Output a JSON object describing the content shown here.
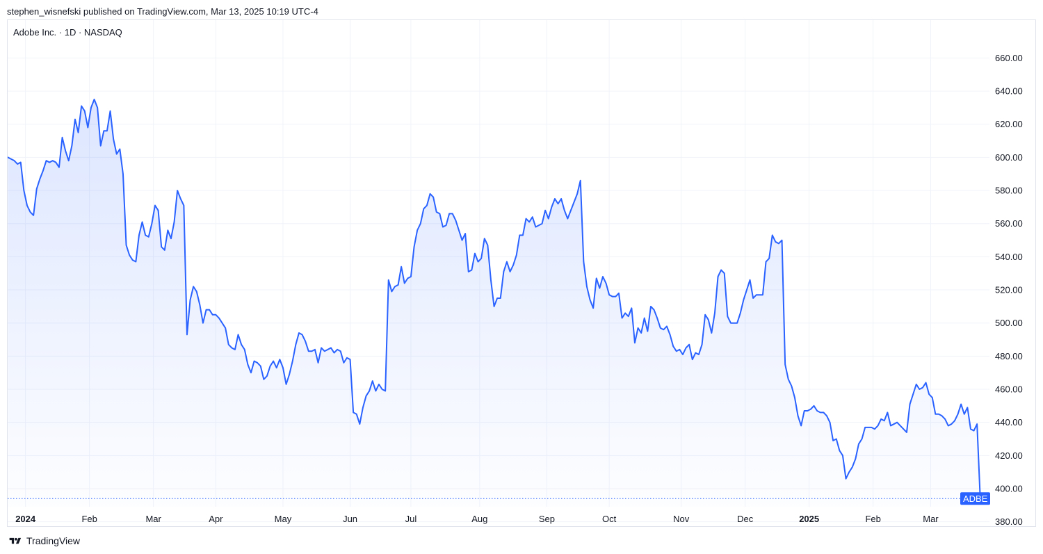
{
  "header": {
    "text": "stephen_wisnefski published on TradingView.com, Mar 13, 2025 10:19 UTC-4"
  },
  "legend": {
    "text": "Adobe Inc. · 1D · NASDAQ"
  },
  "footer": {
    "brand": "TradingView"
  },
  "colors": {
    "line": "#2962ff",
    "grid": "#f0f3fa",
    "axis_text": "#131722",
    "badge_bg": "#2962ff",
    "badge_text": "#ffffff"
  },
  "chart_data": {
    "type": "area",
    "title": "Adobe Inc. · 1D · NASDAQ",
    "symbol": "ADBE",
    "xlabel": "",
    "ylabel": "",
    "ylim": [
      370,
      666
    ],
    "xlim": [
      0,
      303
    ],
    "grid": true,
    "y_ticks": [
      "380.00",
      "400.00",
      "420.00",
      "440.00",
      "460.00",
      "480.00",
      "500.00",
      "520.00",
      "540.00",
      "560.00",
      "580.00",
      "600.00",
      "620.00",
      "640.00",
      "660.00"
    ],
    "x_ticks": [
      {
        "label": "2024",
        "x": 5.5,
        "bold": true
      },
      {
        "label": "Feb",
        "x": 25.5,
        "bold": false
      },
      {
        "label": "Mar",
        "x": 45.5,
        "bold": false
      },
      {
        "label": "Apr",
        "x": 65,
        "bold": false
      },
      {
        "label": "May",
        "x": 86,
        "bold": false
      },
      {
        "label": "Jun",
        "x": 107,
        "bold": false
      },
      {
        "label": "Jul",
        "x": 126,
        "bold": false
      },
      {
        "label": "Aug",
        "x": 147.5,
        "bold": false
      },
      {
        "label": "Sep",
        "x": 168.5,
        "bold": false
      },
      {
        "label": "Oct",
        "x": 188,
        "bold": false
      },
      {
        "label": "Nov",
        "x": 210.5,
        "bold": false
      },
      {
        "label": "Dec",
        "x": 230.5,
        "bold": false
      },
      {
        "label": "2025",
        "x": 250.5,
        "bold": true
      },
      {
        "label": "Feb",
        "x": 270.5,
        "bold": false
      },
      {
        "label": "Mar",
        "x": 288.5,
        "bold": false
      }
    ],
    "series": [
      {
        "name": "ADBE",
        "last_value": 394,
        "points": [
          [
            0,
            600
          ],
          [
            1,
            599
          ],
          [
            2,
            598
          ],
          [
            3,
            596
          ],
          [
            4,
            597
          ],
          [
            5,
            580
          ],
          [
            6,
            571
          ],
          [
            7,
            567
          ],
          [
            8,
            565
          ],
          [
            9,
            581
          ],
          [
            10,
            587
          ],
          [
            11,
            592
          ],
          [
            12,
            598
          ],
          [
            13,
            597
          ],
          [
            14,
            598
          ],
          [
            15,
            597
          ],
          [
            16,
            594
          ],
          [
            17,
            612
          ],
          [
            18,
            604
          ],
          [
            19,
            598
          ],
          [
            20,
            607
          ],
          [
            21,
            623
          ],
          [
            22,
            615
          ],
          [
            23,
            631
          ],
          [
            24,
            628
          ],
          [
            25,
            618
          ],
          [
            26,
            630
          ],
          [
            27,
            635
          ],
          [
            28,
            630
          ],
          [
            29,
            607
          ],
          [
            30,
            616
          ],
          [
            31,
            616
          ],
          [
            32,
            628
          ],
          [
            33,
            611
          ],
          [
            34,
            602
          ],
          [
            35,
            605
          ],
          [
            36,
            590
          ],
          [
            37,
            547
          ],
          [
            38,
            541
          ],
          [
            39,
            538
          ],
          [
            40,
            537
          ],
          [
            41,
            553
          ],
          [
            42,
            561
          ],
          [
            43,
            553
          ],
          [
            44,
            552
          ],
          [
            45,
            560
          ],
          [
            46,
            571
          ],
          [
            47,
            568
          ],
          [
            48,
            546
          ],
          [
            49,
            544
          ],
          [
            50,
            556
          ],
          [
            51,
            551
          ],
          [
            52,
            561
          ],
          [
            53,
            580
          ],
          [
            54,
            575
          ],
          [
            55,
            571
          ],
          [
            56,
            493
          ],
          [
            57,
            514
          ],
          [
            58,
            522
          ],
          [
            59,
            519
          ],
          [
            60,
            511
          ],
          [
            61,
            500
          ],
          [
            62,
            508
          ],
          [
            63,
            508
          ],
          [
            64,
            505
          ],
          [
            65,
            505
          ],
          [
            66,
            503
          ],
          [
            67,
            500
          ],
          [
            68,
            497
          ],
          [
            69,
            487
          ],
          [
            70,
            485
          ],
          [
            71,
            484
          ],
          [
            72,
            493
          ],
          [
            73,
            487
          ],
          [
            74,
            484
          ],
          [
            75,
            475
          ],
          [
            76,
            470
          ],
          [
            77,
            477
          ],
          [
            78,
            476
          ],
          [
            79,
            474
          ],
          [
            80,
            466
          ],
          [
            81,
            468
          ],
          [
            82,
            474
          ],
          [
            83,
            477
          ],
          [
            84,
            473
          ],
          [
            85,
            478
          ],
          [
            86,
            473
          ],
          [
            87,
            463
          ],
          [
            88,
            469
          ],
          [
            89,
            477
          ],
          [
            90,
            487
          ],
          [
            91,
            494
          ],
          [
            92,
            493
          ],
          [
            93,
            489
          ],
          [
            94,
            483
          ],
          [
            95,
            483
          ],
          [
            96,
            484
          ],
          [
            97,
            476
          ],
          [
            98,
            485
          ],
          [
            99,
            483
          ],
          [
            100,
            484
          ],
          [
            101,
            485
          ],
          [
            102,
            482
          ],
          [
            103,
            484
          ],
          [
            104,
            483
          ],
          [
            105,
            476
          ],
          [
            106,
            479
          ],
          [
            107,
            478
          ],
          [
            108,
            446
          ],
          [
            109,
            445
          ],
          [
            110,
            439
          ],
          [
            111,
            449
          ],
          [
            112,
            456
          ],
          [
            113,
            459
          ],
          [
            114,
            465
          ],
          [
            115,
            459
          ],
          [
            116,
            463
          ],
          [
            117,
            460
          ],
          [
            118,
            459
          ],
          [
            119,
            526
          ],
          [
            120,
            519
          ],
          [
            121,
            522
          ],
          [
            122,
            523
          ],
          [
            123,
            534
          ],
          [
            124,
            524
          ],
          [
            125,
            527
          ],
          [
            126,
            528
          ],
          [
            127,
            546
          ],
          [
            128,
            556
          ],
          [
            129,
            560
          ],
          [
            130,
            569
          ],
          [
            131,
            571
          ],
          [
            132,
            578
          ],
          [
            133,
            576
          ],
          [
            134,
            567
          ],
          [
            135,
            566
          ],
          [
            136,
            558
          ],
          [
            137,
            559
          ],
          [
            138,
            566
          ],
          [
            139,
            566
          ],
          [
            140,
            562
          ],
          [
            141,
            556
          ],
          [
            142,
            550
          ],
          [
            143,
            554
          ],
          [
            144,
            531
          ],
          [
            145,
            532
          ],
          [
            146,
            542
          ],
          [
            147,
            537
          ],
          [
            148,
            539
          ],
          [
            149,
            551
          ],
          [
            150,
            547
          ],
          [
            151,
            526
          ],
          [
            152,
            510
          ],
          [
            153,
            515
          ],
          [
            154,
            515
          ],
          [
            155,
            531
          ],
          [
            156,
            537
          ],
          [
            157,
            531
          ],
          [
            158,
            535
          ],
          [
            159,
            541
          ],
          [
            160,
            553
          ],
          [
            161,
            553
          ],
          [
            162,
            563
          ],
          [
            163,
            561
          ],
          [
            164,
            564
          ],
          [
            165,
            558
          ],
          [
            166,
            559
          ],
          [
            167,
            560
          ],
          [
            168,
            568
          ],
          [
            169,
            563
          ],
          [
            170,
            570
          ],
          [
            171,
            575
          ],
          [
            172,
            572
          ],
          [
            173,
            575
          ],
          [
            174,
            568
          ],
          [
            175,
            563
          ],
          [
            176,
            568
          ],
          [
            177,
            573
          ],
          [
            178,
            578
          ],
          [
            179,
            586
          ],
          [
            180,
            537
          ],
          [
            181,
            522
          ],
          [
            182,
            514
          ],
          [
            183,
            509
          ],
          [
            184,
            527
          ],
          [
            185,
            521
          ],
          [
            186,
            528
          ],
          [
            187,
            524
          ],
          [
            188,
            517
          ],
          [
            189,
            516
          ],
          [
            190,
            516
          ],
          [
            191,
            518
          ],
          [
            192,
            503
          ],
          [
            193,
            506
          ],
          [
            194,
            504
          ],
          [
            195,
            509
          ],
          [
            196,
            488
          ],
          [
            197,
            497
          ],
          [
            198,
            494
          ],
          [
            199,
            503
          ],
          [
            200,
            495
          ],
          [
            201,
            510
          ],
          [
            202,
            508
          ],
          [
            203,
            503
          ],
          [
            204,
            497
          ],
          [
            205,
            496
          ],
          [
            206,
            498
          ],
          [
            207,
            493
          ],
          [
            208,
            486
          ],
          [
            209,
            483
          ],
          [
            210,
            484
          ],
          [
            211,
            481
          ],
          [
            212,
            485
          ],
          [
            213,
            487
          ],
          [
            214,
            478
          ],
          [
            215,
            482
          ],
          [
            216,
            481
          ],
          [
            217,
            487
          ],
          [
            218,
            505
          ],
          [
            219,
            502
          ],
          [
            220,
            494
          ],
          [
            221,
            506
          ],
          [
            222,
            528
          ],
          [
            223,
            532
          ],
          [
            224,
            530
          ],
          [
            225,
            504
          ],
          [
            226,
            500
          ],
          [
            227,
            500
          ],
          [
            228,
            500
          ],
          [
            229,
            506
          ],
          [
            230,
            514
          ],
          [
            231,
            520
          ],
          [
            232,
            526
          ],
          [
            233,
            515
          ],
          [
            234,
            517
          ],
          [
            235,
            517
          ],
          [
            236,
            517
          ],
          [
            237,
            537
          ],
          [
            238,
            539
          ],
          [
            239,
            553
          ],
          [
            240,
            549
          ],
          [
            241,
            548
          ],
          [
            242,
            550
          ],
          [
            243,
            475
          ],
          [
            244,
            466
          ],
          [
            245,
            462
          ],
          [
            246,
            455
          ],
          [
            247,
            444
          ],
          [
            248,
            438
          ],
          [
            249,
            447
          ],
          [
            250,
            447
          ],
          [
            251,
            448
          ],
          [
            252,
            450
          ],
          [
            253,
            447
          ],
          [
            254,
            446
          ],
          [
            255,
            446
          ],
          [
            256,
            444
          ],
          [
            257,
            440
          ],
          [
            258,
            429
          ],
          [
            259,
            430
          ],
          [
            260,
            423
          ],
          [
            261,
            420
          ],
          [
            262,
            406
          ],
          [
            263,
            410
          ],
          [
            264,
            413
          ],
          [
            265,
            418
          ],
          [
            266,
            427
          ],
          [
            267,
            430
          ],
          [
            268,
            437
          ],
          [
            269,
            437
          ],
          [
            270,
            437
          ],
          [
            271,
            436
          ],
          [
            272,
            438
          ],
          [
            273,
            442
          ],
          [
            274,
            441
          ],
          [
            275,
            446
          ],
          [
            276,
            438
          ],
          [
            277,
            439
          ],
          [
            278,
            440
          ],
          [
            279,
            438
          ],
          [
            280,
            436
          ],
          [
            281,
            434
          ],
          [
            282,
            451
          ],
          [
            283,
            457
          ],
          [
            284,
            463
          ],
          [
            285,
            460
          ],
          [
            286,
            461
          ],
          [
            287,
            464
          ],
          [
            288,
            457
          ],
          [
            289,
            455
          ],
          [
            290,
            445
          ],
          [
            291,
            445
          ],
          [
            292,
            444
          ],
          [
            293,
            442
          ],
          [
            294,
            438
          ],
          [
            295,
            439
          ],
          [
            296,
            441
          ],
          [
            297,
            445
          ],
          [
            298,
            451
          ],
          [
            299,
            445
          ],
          [
            300,
            449
          ],
          [
            301,
            436
          ],
          [
            302,
            435
          ],
          [
            303,
            439
          ],
          [
            304,
            394
          ]
        ]
      }
    ]
  }
}
